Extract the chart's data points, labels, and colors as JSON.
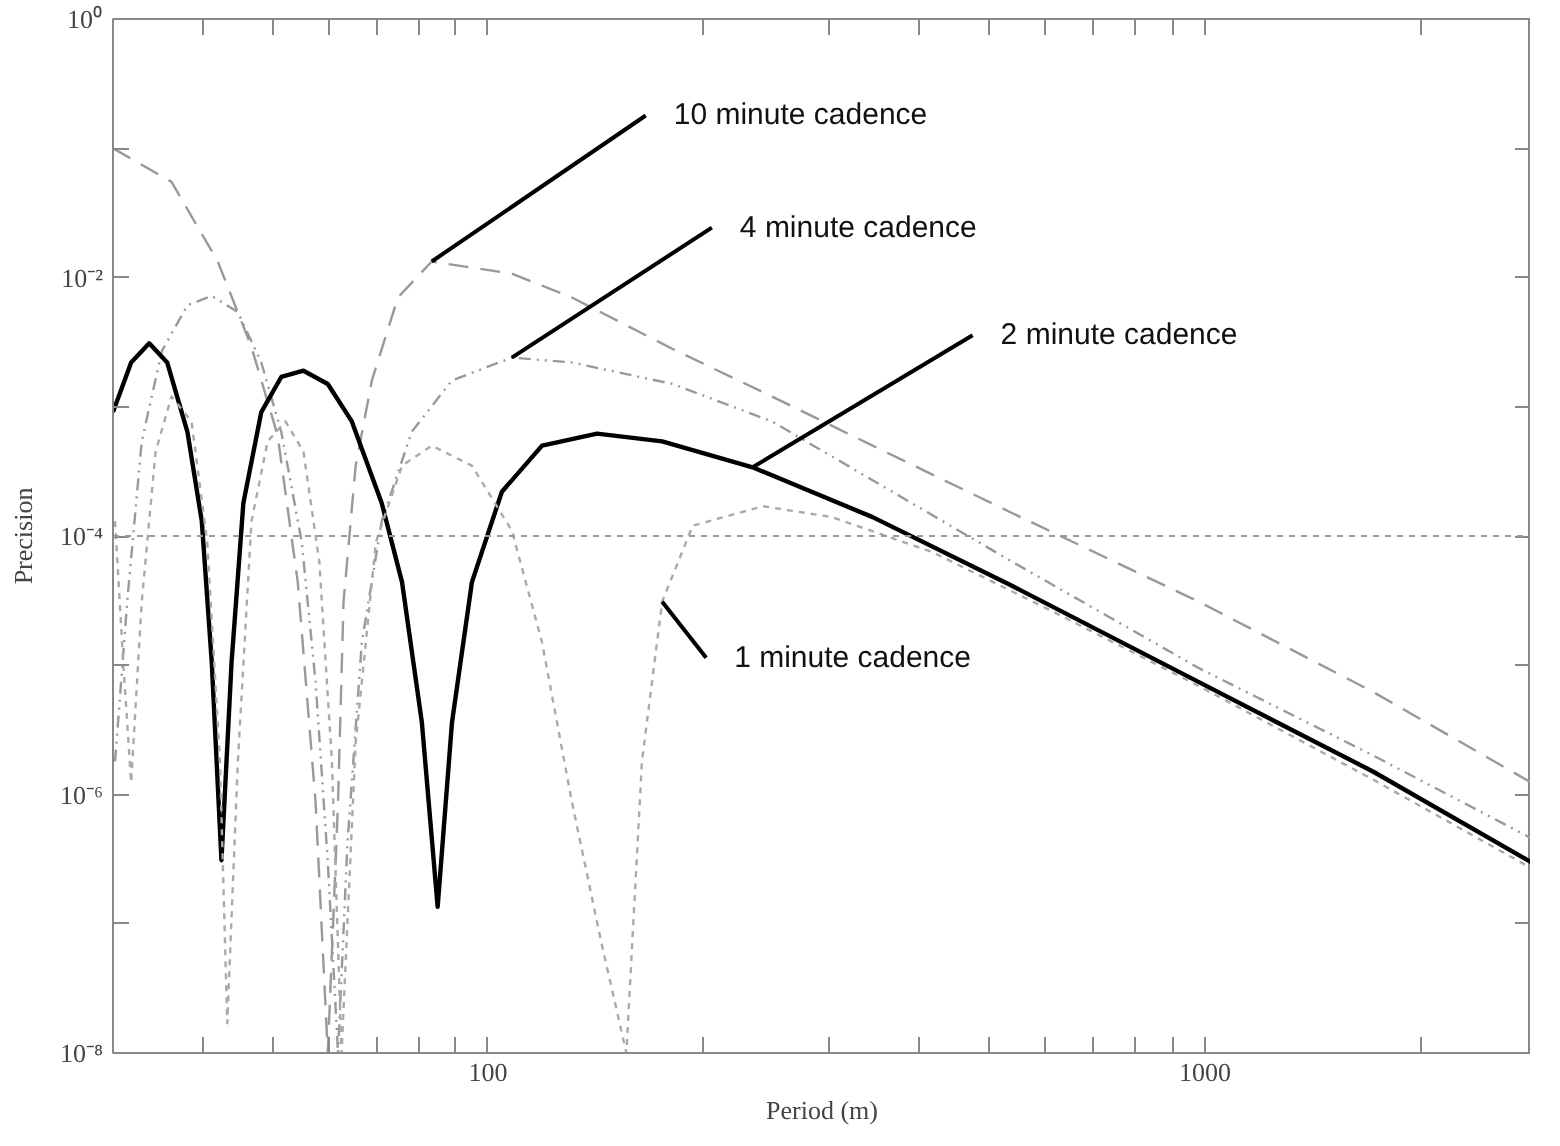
{
  "chart_data": {
    "type": "line",
    "xlabel": "Period (m)",
    "ylabel": "Precision",
    "log": "xy",
    "grid": false,
    "xlim": [
      30,
      2850
    ],
    "ylim": [
      1e-08,
      1
    ],
    "xticks": [
      {
        "value": 30,
        "label": null
      },
      {
        "value": 40,
        "label": null
      },
      {
        "value": 50,
        "label": null
      },
      {
        "value": 60,
        "label": null
      },
      {
        "value": 70,
        "label": null
      },
      {
        "value": 80,
        "label": null
      },
      {
        "value": 90,
        "label": null
      },
      100,
      {
        "value": 200,
        "label": null
      },
      {
        "value": 300,
        "label": null
      },
      {
        "value": 400,
        "label": null
      },
      {
        "value": 500,
        "label": null
      },
      {
        "value": 600,
        "label": null
      },
      {
        "value": 700,
        "label": null
      },
      {
        "value": 800,
        "label": null
      },
      {
        "value": 900,
        "label": null
      },
      1000,
      {
        "value": 2000,
        "label": null
      }
    ],
    "yticks": [
      {
        "value": 1,
        "label": "10⁰"
      },
      {
        "value": 0.1,
        "label": null
      },
      {
        "value": 0.01,
        "label": "10⁻²"
      },
      {
        "value": 0.001,
        "label": null
      },
      {
        "value": 0.0001,
        "label": "10⁻⁴"
      },
      {
        "value": 1e-05,
        "label": null
      },
      {
        "value": 1e-06,
        "label": "10⁻⁶"
      },
      {
        "value": 1e-07,
        "label": null
      },
      {
        "value": 1e-08,
        "label": "10⁻⁸"
      }
    ],
    "ref_lines": [
      {
        "axis": "y",
        "value": 0.0001,
        "color": "#999999",
        "line_style": "dotted"
      }
    ],
    "series": [
      {
        "name": "10 minute cadence",
        "color": "#999999",
        "line_style": "dashed",
        "x": [
          30,
          36.2,
          42.0,
          46.8,
          50.9,
          54.3,
          57.5,
          59.8,
          61.8,
          62.9,
          65.4,
          68.9,
          74.9,
          83.5,
          108,
          131,
          181,
          249,
          344,
          539,
          981,
          1718,
          2850
        ],
        "values": [
          0.1,
          0.055,
          0.0133,
          0.0029,
          0.0006,
          4.4e-05,
          8.7e-07,
          1e-08,
          8.7e-07,
          3.1e-05,
          0.00035,
          0.0016,
          0.007,
          0.0133,
          0.0107,
          0.007,
          0.0028,
          0.0012,
          0.0005,
          0.00015,
          3.1e-05,
          6.2e-06,
          1.24e-06
        ]
      },
      {
        "name": "4 minute cadence",
        "color": "#999999",
        "line_style": "dashdot",
        "x": [
          30.2,
          31.4,
          32.9,
          35.1,
          38.1,
          41.2,
          44.8,
          48.3,
          51.5,
          55.0,
          57.5,
          59.8,
          61.8,
          63.7,
          66.7,
          71.1,
          78.3,
          89.1,
          108,
          131,
          181,
          249,
          344,
          539,
          981,
          1718,
          2850
        ],
        "values": [
          1.8e-06,
          3.1e-05,
          0.00054,
          0.0027,
          0.0061,
          0.0072,
          0.0054,
          0.0022,
          0.00064,
          9e-05,
          7.4e-06,
          3e-07,
          1e-08,
          4.2e-07,
          1.5e-05,
          0.00013,
          0.00064,
          0.0016,
          0.0024,
          0.0022,
          0.0015,
          0.00077,
          0.00027,
          6.3e-05,
          9.5e-06,
          2e-06,
          4.6e-07
        ]
      },
      {
        "name": "2 minute cadence",
        "color": "#000000",
        "line_style": "solid",
        "x": [
          30,
          31.8,
          33.7,
          35.7,
          38.1,
          39.9,
          41.2,
          42.5,
          43.9,
          45.6,
          48.3,
          51.5,
          55.3,
          59.8,
          64.6,
          71.1,
          75.9,
          80.9,
          85.1,
          89.1,
          95.0,
          104.6,
          119,
          142,
          175,
          234,
          344,
          539,
          981,
          1718,
          2850
        ],
        "values": [
          0.00091,
          0.0022,
          0.0031,
          0.0022,
          0.00064,
          0.00013,
          1.05e-05,
          3.1e-07,
          1.05e-05,
          0.00018,
          0.00091,
          0.0017,
          0.0019,
          0.0015,
          0.00077,
          0.00018,
          4.4e-05,
          3.6e-06,
          1.35e-07,
          3.6e-06,
          4.4e-05,
          0.00022,
          0.0005,
          0.00062,
          0.00054,
          0.00034,
          0.00014,
          4.1e-05,
          7.4e-06,
          1.5e-06,
          3e-07
        ]
      },
      {
        "name": "1 minute cadence",
        "color": "#aaaaaa",
        "line_style": "dotted",
        "x": [
          30.2,
          31.0,
          31.8,
          32.9,
          34.4,
          36.2,
          38.6,
          40.6,
          42.3,
          43.3,
          44.8,
          46.8,
          49.3,
          52.2,
          55.3,
          58.2,
          60.6,
          62.5,
          65.4,
          69.8,
          75.9,
          83.5,
          95.0,
          108,
          119,
          131,
          144,
          156,
          164,
          175,
          193,
          242,
          302,
          417,
          614,
          981,
          1718,
          2850
        ],
        "values": [
          0.00013,
          1.05e-05,
          1.24e-06,
          3.1e-05,
          0.00045,
          0.0012,
          0.00077,
          9e-05,
          1.8e-06,
          1.7e-08,
          1.8e-06,
          0.00013,
          0.00054,
          0.00077,
          0.00045,
          6.3e-05,
          1.8e-06,
          1e-08,
          2.5e-06,
          9e-05,
          0.00035,
          0.0005,
          0.00035,
          0.00011,
          1.5e-05,
          8.7e-07,
          7.1e-08,
          1e-08,
          1.8e-06,
          3.1e-05,
          0.00012,
          0.00017,
          0.00014,
          7.5e-05,
          2.6e-05,
          6.9e-06,
          1.3e-06,
          2.7e-07
        ]
      }
    ]
  }
}
